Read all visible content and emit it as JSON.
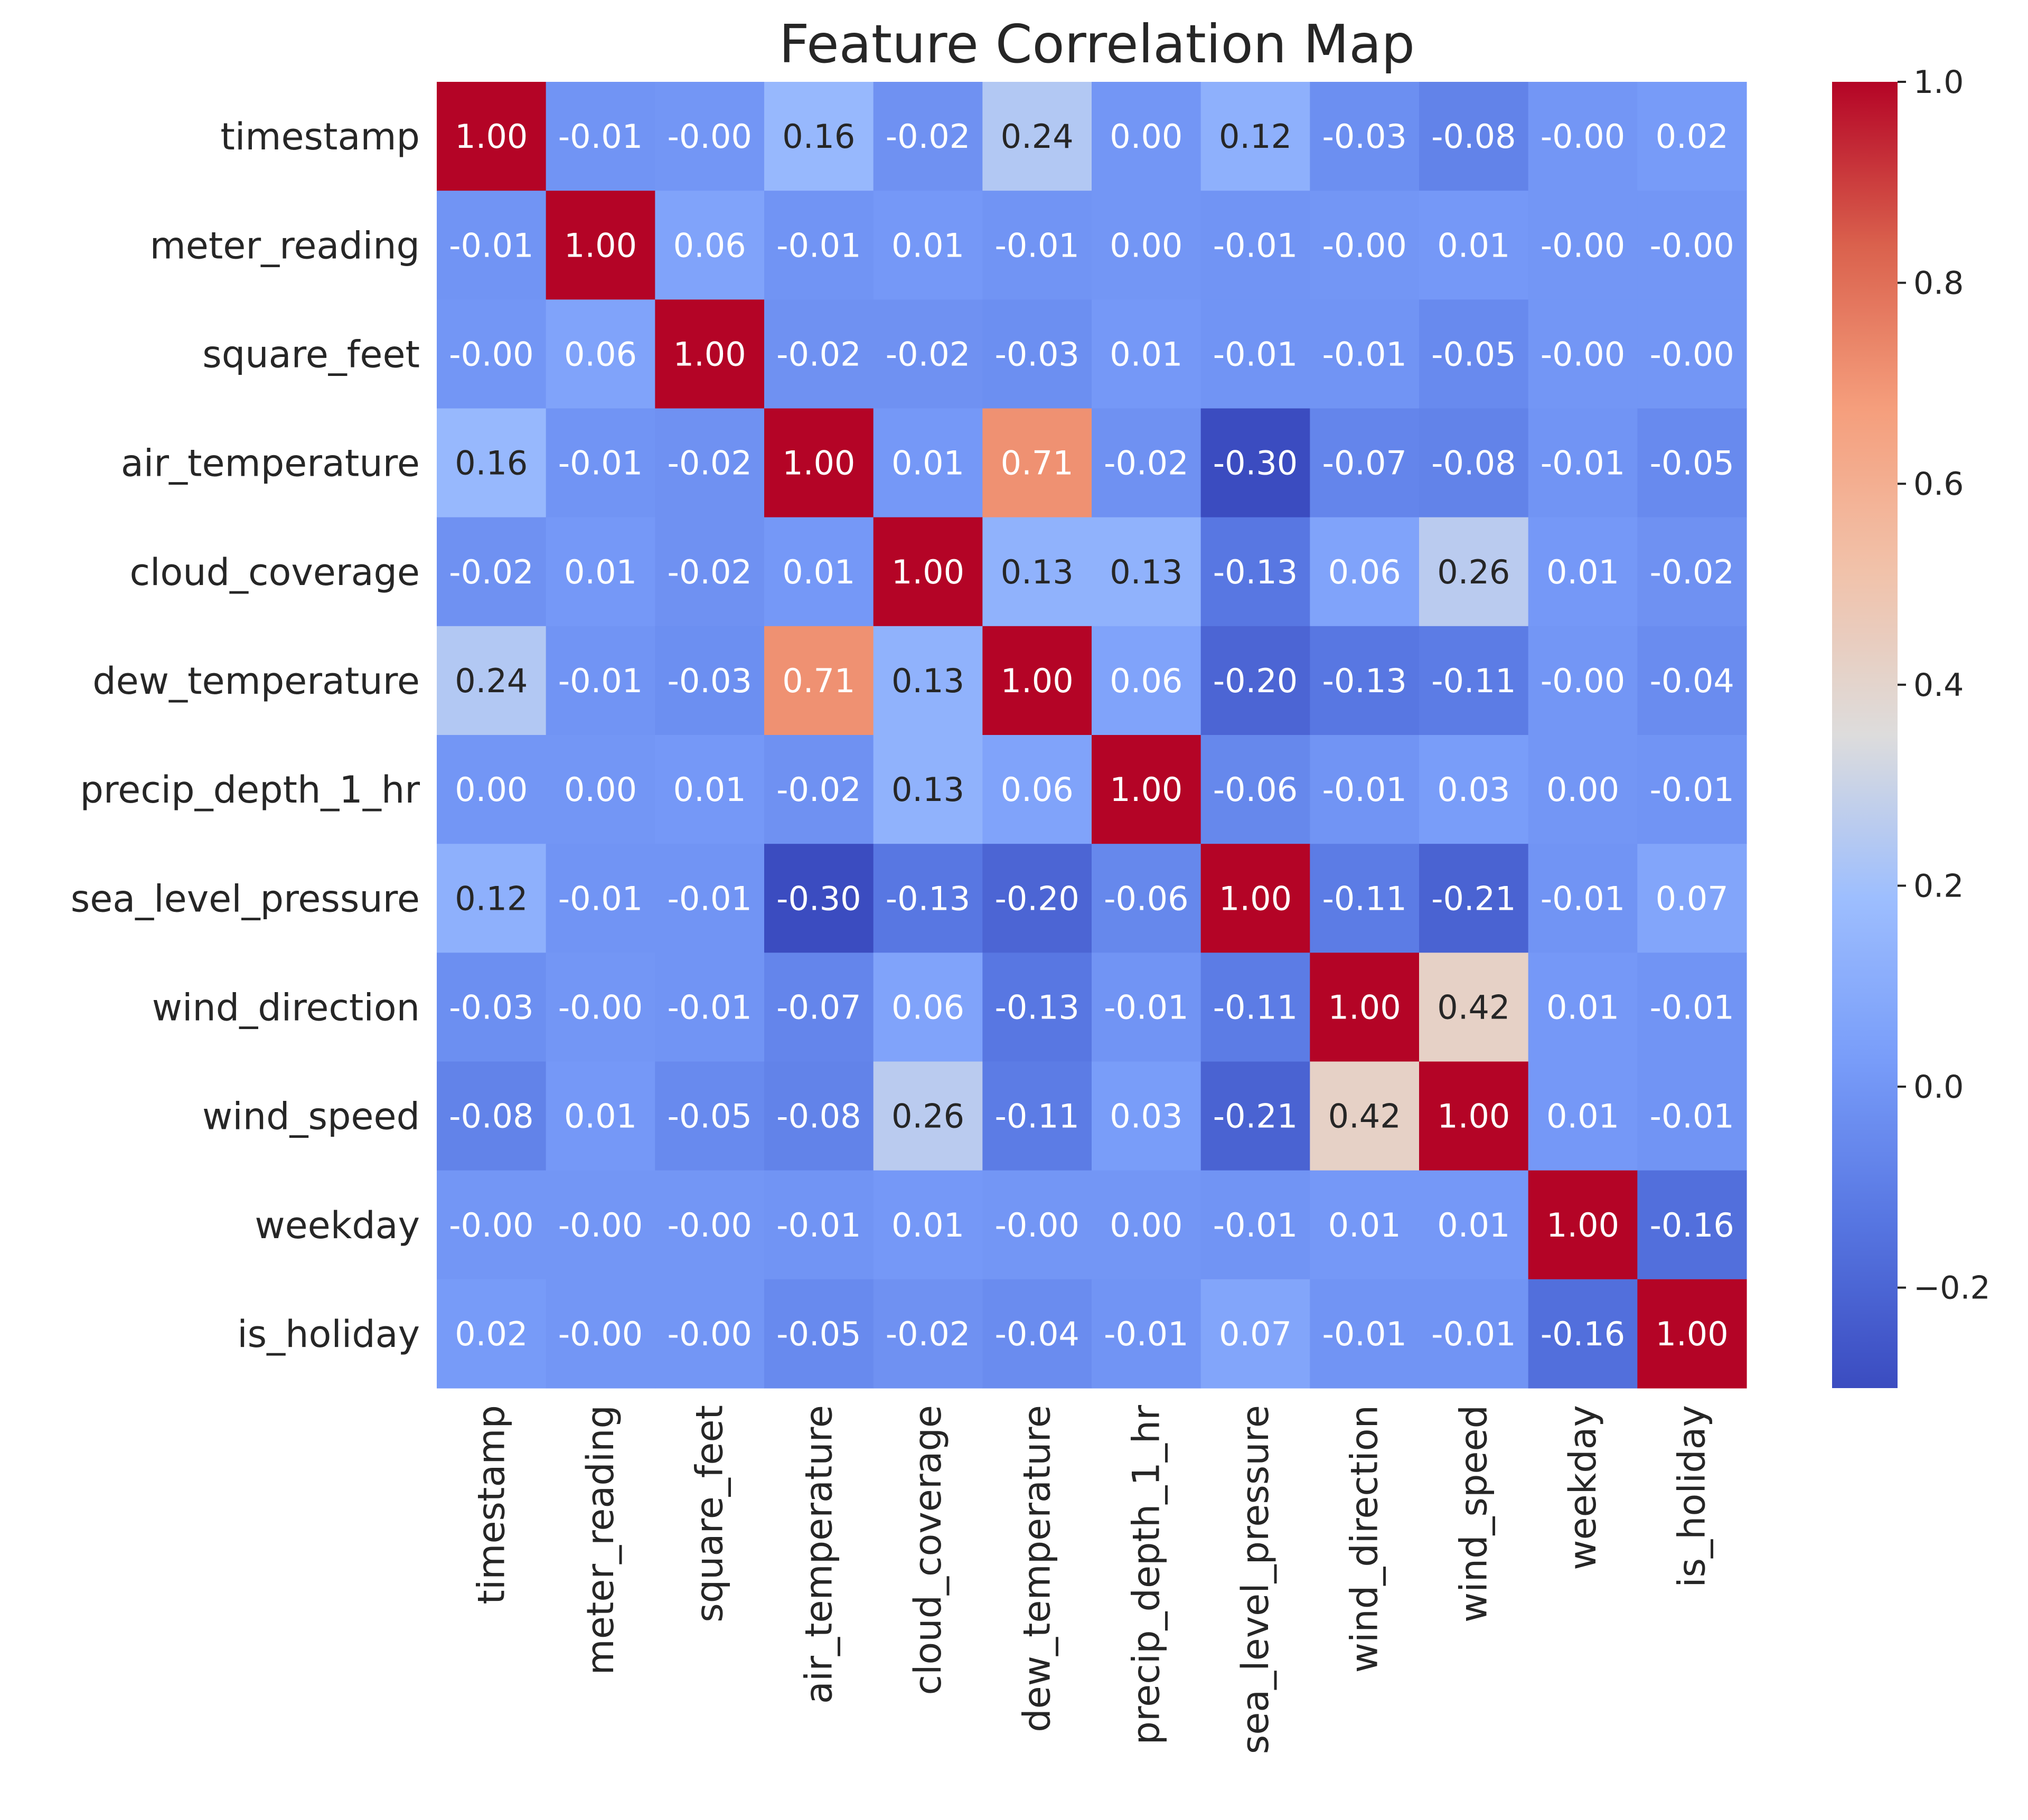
{
  "chart_data": {
    "type": "heatmap",
    "title": "Feature Correlation Map",
    "labels": [
      "timestamp",
      "meter_reading",
      "square_feet",
      "air_temperature",
      "cloud_coverage",
      "dew_temperature",
      "precip_depth_1_hr",
      "sea_level_pressure",
      "wind_direction",
      "wind_speed",
      "weekday",
      "is_holiday"
    ],
    "values": [
      [
        1.0,
        -0.01,
        -0.0,
        0.16,
        -0.02,
        0.24,
        0.0,
        0.12,
        -0.03,
        -0.08,
        -0.0,
        0.02
      ],
      [
        -0.01,
        1.0,
        0.06,
        -0.01,
        0.01,
        -0.01,
        0.0,
        -0.01,
        -0.0,
        0.01,
        -0.0,
        -0.0
      ],
      [
        -0.0,
        0.06,
        1.0,
        -0.02,
        -0.02,
        -0.03,
        0.01,
        -0.01,
        -0.01,
        -0.05,
        -0.0,
        -0.0
      ],
      [
        0.16,
        -0.01,
        -0.02,
        1.0,
        0.01,
        0.71,
        -0.02,
        -0.3,
        -0.07,
        -0.08,
        -0.01,
        -0.05
      ],
      [
        -0.02,
        0.01,
        -0.02,
        0.01,
        1.0,
        0.13,
        0.13,
        -0.13,
        0.06,
        0.26,
        0.01,
        -0.02
      ],
      [
        0.24,
        -0.01,
        -0.03,
        0.71,
        0.13,
        1.0,
        0.06,
        -0.2,
        -0.13,
        -0.11,
        -0.0,
        -0.04
      ],
      [
        0.0,
        0.0,
        0.01,
        -0.02,
        0.13,
        0.06,
        1.0,
        -0.06,
        -0.01,
        0.03,
        0.0,
        -0.01
      ],
      [
        0.12,
        -0.01,
        -0.01,
        -0.3,
        -0.13,
        -0.2,
        -0.06,
        1.0,
        -0.11,
        -0.21,
        -0.01,
        0.07
      ],
      [
        -0.03,
        -0.0,
        -0.01,
        -0.07,
        0.06,
        -0.13,
        -0.01,
        -0.11,
        1.0,
        0.42,
        0.01,
        -0.01
      ],
      [
        -0.08,
        0.01,
        -0.05,
        -0.08,
        0.26,
        -0.11,
        0.03,
        -0.21,
        0.42,
        1.0,
        0.01,
        -0.01
      ],
      [
        -0.0,
        -0.0,
        -0.0,
        -0.01,
        0.01,
        -0.0,
        0.0,
        -0.01,
        0.01,
        0.01,
        1.0,
        -0.16
      ],
      [
        0.02,
        -0.0,
        -0.0,
        -0.05,
        -0.02,
        -0.04,
        -0.01,
        0.07,
        -0.01,
        -0.01,
        -0.16,
        1.0
      ]
    ],
    "color_scale": {
      "name": "coolwarm",
      "min": -0.3,
      "max": 1.0
    },
    "colorbar": {
      "ticks": [
        -0.2,
        0.0,
        0.2,
        0.4,
        0.6,
        0.8,
        1.0
      ],
      "tick_labels": [
        "−0.2",
        "0.0",
        "0.2",
        "0.4",
        "0.6",
        "0.8",
        "1.0"
      ]
    },
    "annotation_format": "2 decimals",
    "grid": false,
    "legend": "colorbar-right"
  }
}
